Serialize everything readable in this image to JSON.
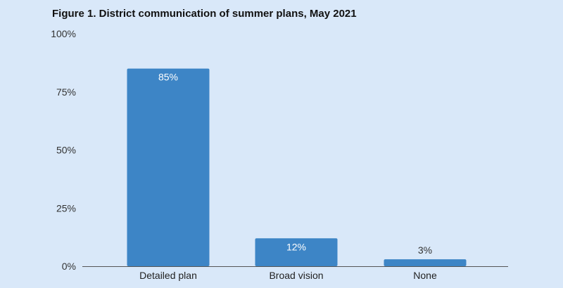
{
  "chart_data": {
    "type": "bar",
    "title": "Figure 1. District communication of summer plans, May 2021",
    "categories": [
      "Detailed plan",
      "Broad vision",
      "None"
    ],
    "values": [
      85,
      12,
      3
    ],
    "data_labels": [
      "85%",
      "12%",
      "3%"
    ],
    "ylim": [
      0,
      100
    ],
    "yticks": [
      0,
      25,
      50,
      75,
      100
    ],
    "ytick_labels": [
      "0%",
      "25%",
      "50%",
      "75%",
      "100%"
    ],
    "xlabel": "",
    "ylabel": "",
    "grid": false,
    "legend": "none",
    "colors": {
      "bar": "#3d85c6",
      "label_inside": "#ffffff",
      "label_outside": "#333333",
      "background": "#d9e8f9"
    }
  }
}
